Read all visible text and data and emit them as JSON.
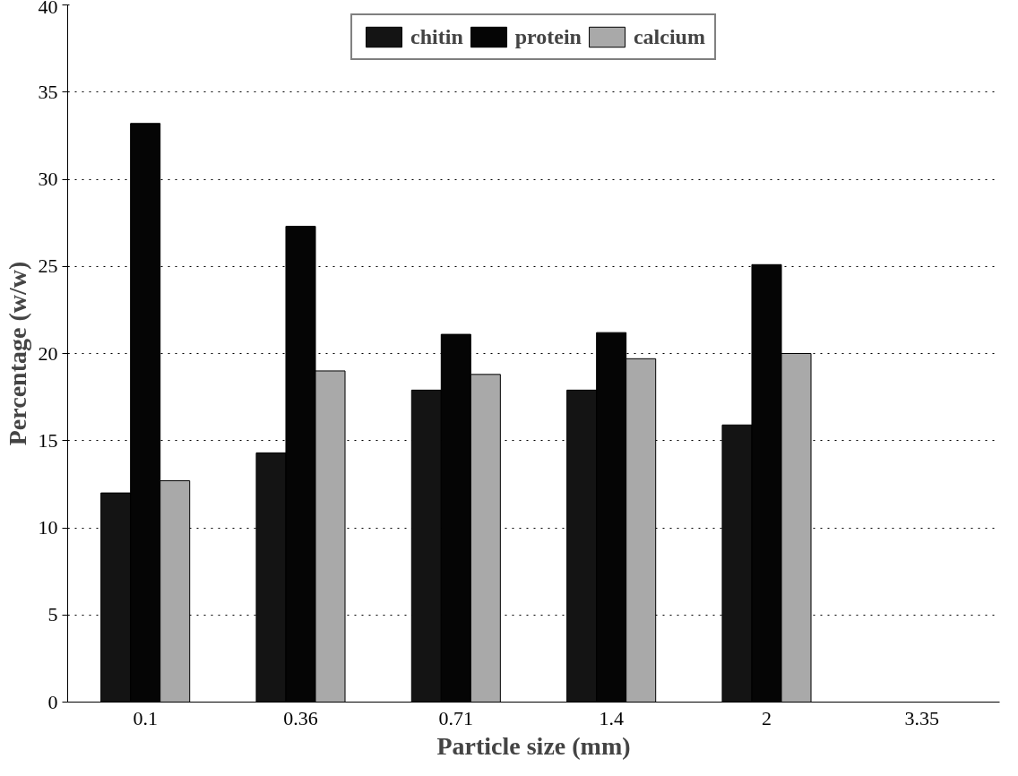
{
  "chart_data": {
    "type": "bar",
    "xlabel": "Particle size (mm)",
    "ylabel": "Percentage (w/w)",
    "categories": [
      "0.1",
      "0.36",
      "0.71",
      "1.4",
      "2",
      "3.35"
    ],
    "series": [
      {
        "name": "chitin",
        "color": "#141414",
        "values": [
          12,
          14.3,
          17.9,
          17.9,
          15.9,
          null
        ]
      },
      {
        "name": "protein",
        "color": "#050505",
        "values": [
          33.2,
          27.3,
          21.1,
          21.2,
          25.1,
          null
        ]
      },
      {
        "name": "calcium",
        "color": "#a9a9a9",
        "values": [
          12.7,
          19,
          18.8,
          19.7,
          20,
          null
        ]
      }
    ],
    "ylim": [
      0,
      40
    ],
    "yticks": [
      0,
      5,
      10,
      15,
      20,
      25,
      30,
      35,
      40
    ],
    "grid": "y",
    "legend": "top"
  }
}
